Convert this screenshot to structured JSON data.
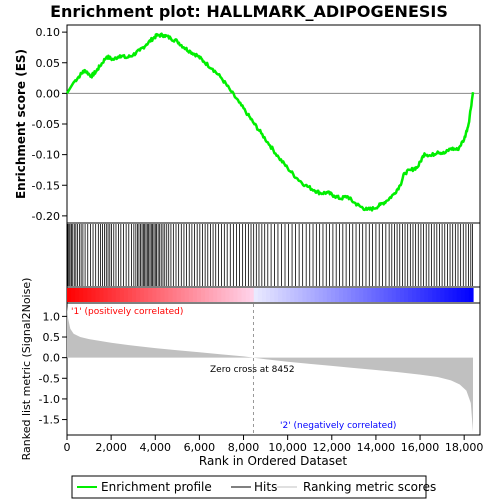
{
  "chart_data": {
    "type": "line",
    "title": "Enrichment plot: HALLMARK_ADIPOGENESIS",
    "top_panel": {
      "ylabel": "Enrichment score (ES)",
      "ylim": [
        -0.21,
        0.11
      ],
      "yticks": [
        0.1,
        0.05,
        0.0,
        -0.05,
        -0.1,
        -0.15,
        -0.2
      ],
      "ytick_labels": [
        "0.10",
        "0.05",
        "0.00",
        "-0.05",
        "-0.10",
        "-0.15",
        "-0.20"
      ],
      "series": [
        {
          "name": "Enrichment profile",
          "color": "#00ee00",
          "x": [
            0,
            300,
            600,
            800,
            1100,
            1300,
            1500,
            1800,
            2100,
            2400,
            2700,
            3000,
            3300,
            3600,
            3900,
            4100,
            4400,
            4700,
            5000,
            5300,
            5600,
            5900,
            6200,
            6600,
            7000,
            7400,
            7800,
            8200,
            8452,
            8800,
            9200,
            9600,
            10000,
            10400,
            10800,
            11200,
            11500,
            11800,
            12100,
            12400,
            12700,
            13000,
            13300,
            13600,
            13900,
            14200,
            14500,
            14800,
            15100,
            15300,
            15600,
            15900,
            16200,
            16500,
            16800,
            17100,
            17400,
            17700,
            18000,
            18200,
            18400
          ],
          "values": [
            0.0,
            0.018,
            0.03,
            0.038,
            0.028,
            0.035,
            0.045,
            0.06,
            0.055,
            0.062,
            0.058,
            0.063,
            0.07,
            0.08,
            0.09,
            0.095,
            0.095,
            0.09,
            0.085,
            0.075,
            0.068,
            0.062,
            0.052,
            0.04,
            0.025,
            0.005,
            -0.015,
            -0.035,
            -0.048,
            -0.065,
            -0.085,
            -0.105,
            -0.122,
            -0.138,
            -0.15,
            -0.158,
            -0.163,
            -0.162,
            -0.167,
            -0.172,
            -0.168,
            -0.178,
            -0.185,
            -0.19,
            -0.188,
            -0.182,
            -0.175,
            -0.165,
            -0.15,
            -0.13,
            -0.125,
            -0.12,
            -0.098,
            -0.102,
            -0.095,
            -0.098,
            -0.09,
            -0.092,
            -0.075,
            -0.05,
            0.002
          ]
        }
      ]
    },
    "hits_panel": {
      "hit_ranks": [
        40,
        90,
        140,
        200,
        260,
        330,
        400,
        470,
        560,
        640,
        720,
        820,
        940,
        1060,
        1180,
        1300,
        1420,
        1520,
        1610,
        1700,
        1780,
        1860,
        1940,
        2020,
        2120,
        2220,
        2330,
        2440,
        2560,
        2680,
        2800,
        2920,
        3030,
        3120,
        3190,
        3260,
        3330,
        3400,
        3460,
        3520,
        3580,
        3640,
        3700,
        3760,
        3820,
        3880,
        3940,
        4000,
        4060,
        4130,
        4200,
        4270,
        4350,
        4430,
        4520,
        4610,
        4710,
        4820,
        4940,
        5060,
        5180,
        5300,
        5420,
        5540,
        5660,
        5780,
        5900,
        6020,
        6140,
        6260,
        6380,
        6500,
        6620,
        6740,
        6870,
        7000,
        7130,
        7260,
        7400,
        7540,
        7680,
        7820,
        7960,
        8090,
        8220,
        8340,
        8460,
        8580,
        8700,
        8830,
        8960,
        9100,
        9250,
        9400,
        9560,
        9720,
        9880,
        10040,
        10200,
        10360,
        10520,
        10680,
        10840,
        11000,
        11150,
        11300,
        11450,
        11600,
        11750,
        11900,
        12050,
        12200,
        12350,
        12500,
        12650,
        12800,
        12950,
        13100,
        13250,
        13400,
        13550,
        13700,
        13850,
        14000,
        14150,
        14300,
        14450,
        14600,
        14720,
        14840,
        14960,
        15080,
        15200,
        15320,
        15440,
        15560,
        15680,
        15800,
        15920,
        16040,
        16160,
        16280,
        16400,
        16520,
        16640,
        16760,
        16880,
        17000,
        17120,
        17240,
        17360,
        17480,
        17600,
        17720,
        17840,
        17960,
        18080,
        18200,
        18300,
        18380
      ]
    },
    "metric_panel": {
      "ylabel": "Ranked list metric (Signal2Noise)",
      "ylim": [
        -1.85,
        1.3
      ],
      "yticks": [
        1.0,
        0.5,
        0.0,
        -0.5,
        -1.0,
        -1.5
      ],
      "ytick_labels": [
        "1.0",
        "0.5",
        "0.0",
        "-0.5",
        "-1.0",
        "-1.5"
      ],
      "x": [
        0,
        50,
        150,
        300,
        600,
        1000,
        2000,
        3000,
        4000,
        5000,
        6000,
        7000,
        8000,
        8452,
        9000,
        10000,
        11000,
        12000,
        13000,
        14000,
        15000,
        16000,
        16800,
        17400,
        17800,
        18100,
        18300,
        18400
      ],
      "values": [
        1.25,
        0.95,
        0.7,
        0.58,
        0.5,
        0.45,
        0.36,
        0.29,
        0.23,
        0.18,
        0.13,
        0.08,
        0.03,
        0.0,
        -0.04,
        -0.1,
        -0.15,
        -0.2,
        -0.25,
        -0.3,
        -0.35,
        -0.41,
        -0.47,
        -0.55,
        -0.65,
        -0.8,
        -1.1,
        -1.8
      ],
      "fill_color": "#c0c0c0",
      "zero_cross_label": "Zero cross at 8452",
      "zero_cross_rank": 8452,
      "positive_label": "'1' (positively correlated)",
      "negative_label": "'2' (negatively correlated)",
      "positive_color": "#ff0000",
      "negative_color": "#0000ff"
    },
    "xlabel": "Rank in Ordered Dataset",
    "xlim": [
      0,
      18400
    ],
    "xticks": [
      0,
      2000,
      4000,
      6000,
      8000,
      10000,
      12000,
      14000,
      16000,
      18000
    ],
    "xtick_labels": [
      "0",
      "2,000",
      "4,000",
      "6,000",
      "8,000",
      "10,000",
      "12,000",
      "14,000",
      "16,000",
      "18,000"
    ],
    "legend": {
      "placement": "bottom",
      "items": [
        {
          "label": "Enrichment profile",
          "color": "#00ee00"
        },
        {
          "label": "Hits",
          "color": "#000000"
        },
        {
          "label": "Ranking metric scores",
          "color": "#c0c0c0"
        }
      ]
    }
  }
}
